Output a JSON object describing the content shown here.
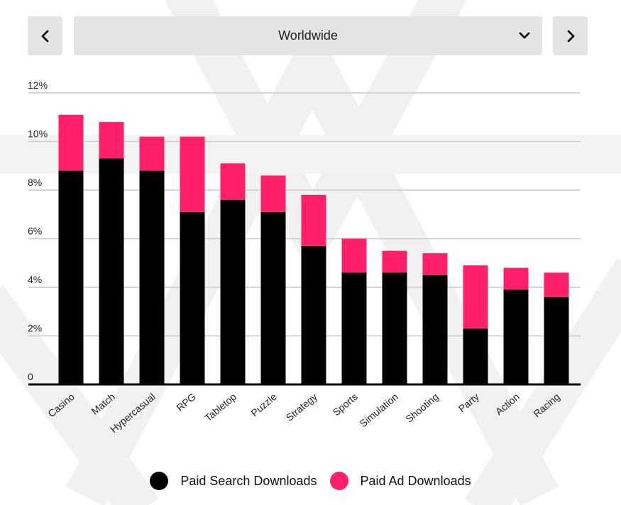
{
  "header": {
    "region": "Worldwide",
    "prev_icon": "chevron-left-icon",
    "next_icon": "chevron-right-icon",
    "dropdown_icon": "chevron-down-icon"
  },
  "colors": {
    "paid_search": "#000000",
    "paid_ad": "#ff1f6b",
    "grid": "#cccccc",
    "axis": "#000000",
    "button_bg": "#e4e4e4"
  },
  "chart_data": {
    "type": "bar",
    "stacked": true,
    "categories": [
      "Casino",
      "Match",
      "Hypercasual",
      "RPG",
      "Tabletop",
      "Puzzle",
      "Strategy",
      "Sports",
      "Simulation",
      "Shooting",
      "Party",
      "Action",
      "Racing"
    ],
    "series": [
      {
        "name": "Paid Search Downloads",
        "values": [
          8.8,
          9.3,
          8.8,
          7.1,
          7.6,
          7.1,
          5.7,
          4.6,
          4.6,
          4.5,
          2.3,
          3.9,
          3.6
        ]
      },
      {
        "name": "Paid Ad Downloads",
        "values": [
          2.3,
          1.5,
          1.4,
          3.1,
          1.5,
          1.5,
          2.1,
          1.4,
          0.9,
          0.9,
          2.6,
          0.9,
          1.0
        ]
      }
    ],
    "yticks": [
      "0",
      "2%",
      "4%",
      "6%",
      "8%",
      "10%",
      "12%"
    ],
    "ylim": [
      0,
      12
    ],
    "grid": true,
    "legend_position": "bottom"
  }
}
